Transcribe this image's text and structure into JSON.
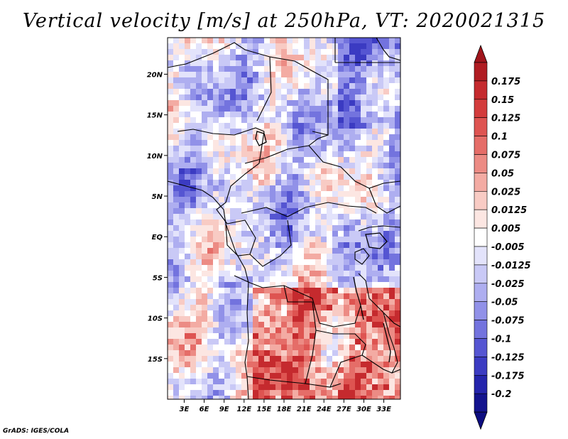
{
  "title": "Vertical velocity [m/s] at 250hPa, VT: 2020021315",
  "credit": "GrADS: IGES/COLA",
  "map": {
    "lat_range": [
      -20,
      24.5
    ],
    "lon_range": [
      0.5,
      35.5
    ],
    "lat_ticks": [
      {
        "label": "20N",
        "value": 20
      },
      {
        "label": "15N",
        "value": 15
      },
      {
        "label": "10N",
        "value": 10
      },
      {
        "label": "5N",
        "value": 5
      },
      {
        "label": "EQ",
        "value": 0
      },
      {
        "label": "5S",
        "value": -5
      },
      {
        "label": "10S",
        "value": -10
      },
      {
        "label": "15S",
        "value": -15
      }
    ],
    "lon_ticks": [
      {
        "label": "3E",
        "value": 3
      },
      {
        "label": "6E",
        "value": 6
      },
      {
        "label": "9E",
        "value": 9
      },
      {
        "label": "12E",
        "value": 12
      },
      {
        "label": "15E",
        "value": 15
      },
      {
        "label": "18E",
        "value": 18
      },
      {
        "label": "21E",
        "value": 21
      },
      {
        "label": "24E",
        "value": 24
      },
      {
        "label": "27E",
        "value": 27
      },
      {
        "label": "30E",
        "value": 30
      },
      {
        "label": "33E",
        "value": 33
      }
    ]
  },
  "colorbar": {
    "levels": [
      "0.175",
      "0.15",
      "0.125",
      "0.1",
      "0.075",
      "0.05",
      "0.025",
      "0.0125",
      "0.005",
      "-0.005",
      "-0.0125",
      "-0.025",
      "-0.05",
      "-0.075",
      "-0.1",
      "-0.125",
      "-0.175",
      "-0.2"
    ],
    "colors": [
      "#b01c22",
      "#c52a2e",
      "#d33c3c",
      "#de5451",
      "#e56d68",
      "#ec8b84",
      "#f3aba3",
      "#f8cbc4",
      "#fce6e2",
      "#ffffff",
      "#e3e3fb",
      "#c9c9f6",
      "#aeaef0",
      "#9191e8",
      "#7373de",
      "#5555d2",
      "#3b3bc2",
      "#2424ac",
      "#13138e"
    ],
    "top_color": "#a0151c",
    "bottom_color": "#0d0d80"
  }
}
